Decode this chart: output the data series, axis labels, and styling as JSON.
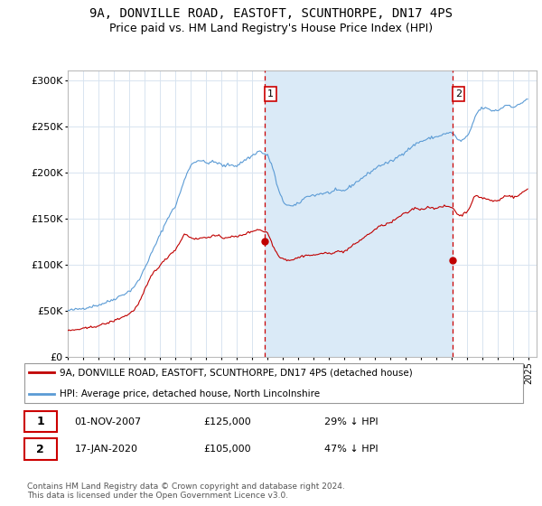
{
  "title": "9A, DONVILLE ROAD, EASTOFT, SCUNTHORPE, DN17 4PS",
  "subtitle": "Price paid vs. HM Land Registry's House Price Index (HPI)",
  "title_fontsize": 10,
  "subtitle_fontsize": 9,
  "ylabel_ticks": [
    "£0",
    "£50K",
    "£100K",
    "£150K",
    "£200K",
    "£250K",
    "£300K"
  ],
  "ytick_values": [
    0,
    50000,
    100000,
    150000,
    200000,
    250000,
    300000
  ],
  "ylim": [
    0,
    310000
  ],
  "xlim_start": 1995.0,
  "xlim_end": 2025.5,
  "background_color": "#ffffff",
  "grid_color": "#d8e4f0",
  "hpi_color": "#5b9bd5",
  "hpi_fill_color": "#daeaf7",
  "price_color": "#c00000",
  "vline_color": "#cc0000",
  "marker1_x": 2007.83,
  "marker1_y": 125000,
  "marker2_x": 2020.04,
  "marker2_y": 105000,
  "legend_label_price": "9A, DONVILLE ROAD, EASTOFT, SCUNTHORPE, DN17 4PS (detached house)",
  "legend_label_hpi": "HPI: Average price, detached house, North Lincolnshire",
  "table_rows": [
    {
      "num": "1",
      "date": "01-NOV-2007",
      "price": "£125,000",
      "hpi": "29% ↓ HPI"
    },
    {
      "num": "2",
      "date": "17-JAN-2020",
      "price": "£105,000",
      "hpi": "47% ↓ HPI"
    }
  ],
  "footnote": "Contains HM Land Registry data © Crown copyright and database right 2024.\nThis data is licensed under the Open Government Licence v3.0.",
  "hpi_data_years": [
    1995.0,
    1995.083,
    1995.167,
    1995.25,
    1995.333,
    1995.417,
    1995.5,
    1995.583,
    1995.667,
    1995.75,
    1995.833,
    1995.917,
    1996.0,
    1996.083,
    1996.167,
    1996.25,
    1996.333,
    1996.417,
    1996.5,
    1996.583,
    1996.667,
    1996.75,
    1996.833,
    1996.917,
    1997.0,
    1997.083,
    1997.167,
    1997.25,
    1997.333,
    1997.417,
    1997.5,
    1997.583,
    1997.667,
    1997.75,
    1997.833,
    1997.917,
    1998.0,
    1998.083,
    1998.167,
    1998.25,
    1998.333,
    1998.417,
    1998.5,
    1998.583,
    1998.667,
    1998.75,
    1998.833,
    1998.917,
    1999.0,
    1999.083,
    1999.167,
    1999.25,
    1999.333,
    1999.417,
    1999.5,
    1999.583,
    1999.667,
    1999.75,
    1999.833,
    1999.917,
    2000.0,
    2000.083,
    2000.167,
    2000.25,
    2000.333,
    2000.417,
    2000.5,
    2000.583,
    2000.667,
    2000.75,
    2000.833,
    2000.917,
    2001.0,
    2001.083,
    2001.167,
    2001.25,
    2001.333,
    2001.417,
    2001.5,
    2001.583,
    2001.667,
    2001.75,
    2001.833,
    2001.917,
    2002.0,
    2002.083,
    2002.167,
    2002.25,
    2002.333,
    2002.417,
    2002.5,
    2002.583,
    2002.667,
    2002.75,
    2002.833,
    2002.917,
    2003.0,
    2003.083,
    2003.167,
    2003.25,
    2003.333,
    2003.417,
    2003.5,
    2003.583,
    2003.667,
    2003.75,
    2003.833,
    2003.917,
    2004.0,
    2004.083,
    2004.167,
    2004.25,
    2004.333,
    2004.417,
    2004.5,
    2004.583,
    2004.667,
    2004.75,
    2004.833,
    2004.917,
    2005.0,
    2005.083,
    2005.167,
    2005.25,
    2005.333,
    2005.417,
    2005.5,
    2005.583,
    2005.667,
    2005.75,
    2005.833,
    2005.917,
    2006.0,
    2006.083,
    2006.167,
    2006.25,
    2006.333,
    2006.417,
    2006.5,
    2006.583,
    2006.667,
    2006.75,
    2006.833,
    2006.917,
    2007.0,
    2007.083,
    2007.167,
    2007.25,
    2007.333,
    2007.417,
    2007.5,
    2007.583,
    2007.667,
    2007.75,
    2007.833,
    2007.917,
    2008.0,
    2008.083,
    2008.167,
    2008.25,
    2008.333,
    2008.417,
    2008.5,
    2008.583,
    2008.667,
    2008.75,
    2008.833,
    2008.917,
    2009.0,
    2009.083,
    2009.167,
    2009.25,
    2009.333,
    2009.417,
    2009.5,
    2009.583,
    2009.667,
    2009.75,
    2009.833,
    2009.917,
    2010.0,
    2010.083,
    2010.167,
    2010.25,
    2010.333,
    2010.417,
    2010.5,
    2010.583,
    2010.667,
    2010.75,
    2010.833,
    2010.917,
    2011.0,
    2011.083,
    2011.167,
    2011.25,
    2011.333,
    2011.417,
    2011.5,
    2011.583,
    2011.667,
    2011.75,
    2011.833,
    2011.917,
    2012.0,
    2012.083,
    2012.167,
    2012.25,
    2012.333,
    2012.417,
    2012.5,
    2012.583,
    2012.667,
    2012.75,
    2012.833,
    2012.917,
    2013.0,
    2013.083,
    2013.167,
    2013.25,
    2013.333,
    2013.417,
    2013.5,
    2013.583,
    2013.667,
    2013.75,
    2013.833,
    2013.917,
    2014.0,
    2014.083,
    2014.167,
    2014.25,
    2014.333,
    2014.417,
    2014.5,
    2014.583,
    2014.667,
    2014.75,
    2014.833,
    2014.917,
    2015.0,
    2015.083,
    2015.167,
    2015.25,
    2015.333,
    2015.417,
    2015.5,
    2015.583,
    2015.667,
    2015.75,
    2015.833,
    2015.917,
    2016.0,
    2016.083,
    2016.167,
    2016.25,
    2016.333,
    2016.417,
    2016.5,
    2016.583,
    2016.667,
    2016.75,
    2016.833,
    2016.917,
    2017.0,
    2017.083,
    2017.167,
    2017.25,
    2017.333,
    2017.417,
    2017.5,
    2017.583,
    2017.667,
    2017.75,
    2017.833,
    2017.917,
    2018.0,
    2018.083,
    2018.167,
    2018.25,
    2018.333,
    2018.417,
    2018.5,
    2018.583,
    2018.667,
    2018.75,
    2018.833,
    2018.917,
    2019.0,
    2019.083,
    2019.167,
    2019.25,
    2019.333,
    2019.417,
    2019.5,
    2019.583,
    2019.667,
    2019.75,
    2019.833,
    2019.917,
    2020.0,
    2020.083,
    2020.167,
    2020.25,
    2020.333,
    2020.417,
    2020.5,
    2020.583,
    2020.667,
    2020.75,
    2020.833,
    2020.917,
    2021.0,
    2021.083,
    2021.167,
    2021.25,
    2021.333,
    2021.417,
    2021.5,
    2021.583,
    2021.667,
    2021.75,
    2021.833,
    2021.917,
    2022.0,
    2022.083,
    2022.167,
    2022.25,
    2022.333,
    2022.417,
    2022.5,
    2022.583,
    2022.667,
    2022.75,
    2022.833,
    2022.917,
    2023.0,
    2023.083,
    2023.167,
    2023.25,
    2023.333,
    2023.417,
    2023.5,
    2023.583,
    2023.667,
    2023.75,
    2023.833,
    2023.917,
    2024.0,
    2024.083,
    2024.167,
    2024.25,
    2024.333,
    2024.417,
    2024.5,
    2024.583,
    2024.667,
    2024.75,
    2024.833,
    2024.917
  ],
  "hpi_data_values": [
    50000,
    50200,
    50400,
    50600,
    50800,
    51000,
    51200,
    51400,
    51600,
    51800,
    52000,
    52200,
    52500,
    52800,
    53100,
    53400,
    53700,
    54000,
    54300,
    54600,
    54900,
    55200,
    55500,
    55800,
    56200,
    56600,
    57000,
    57500,
    58000,
    58500,
    59000,
    59500,
    60000,
    60600,
    61200,
    61800,
    62500,
    63200,
    63900,
    64600,
    65300,
    66000,
    66700,
    67400,
    68100,
    68800,
    69500,
    70200,
    71000,
    72000,
    73500,
    75000,
    76500,
    78000,
    80000,
    82000,
    84000,
    87000,
    90000,
    93000,
    96000,
    99000,
    102000,
    105000,
    108000,
    111000,
    114000,
    117000,
    120000,
    123000,
    126000,
    129000,
    132000,
    135000,
    138000,
    141000,
    144000,
    147000,
    150000,
    153000,
    155000,
    157000,
    159000,
    161000,
    163000,
    167000,
    171000,
    175000,
    179000,
    183000,
    187000,
    191000,
    195000,
    199000,
    202000,
    205000,
    207000,
    209000,
    210000,
    211000,
    212000,
    212500,
    213000,
    213000,
    212500,
    212000,
    211500,
    211000,
    210000,
    210000,
    210500,
    211000,
    211000,
    211000,
    211000,
    211000,
    210500,
    210000,
    209500,
    209000,
    208000,
    207000,
    207000,
    207000,
    207500,
    208000,
    208000,
    208000,
    208000,
    208000,
    207500,
    207000,
    207000,
    208000,
    209000,
    210000,
    211000,
    212000,
    213000,
    214000,
    215000,
    215500,
    216000,
    217000,
    218000,
    219000,
    220000,
    221000,
    222000,
    222500,
    223000,
    222000,
    221000,
    220000,
    219500,
    219000,
    218000,
    215000,
    212000,
    209000,
    205000,
    200000,
    194000,
    188000,
    183000,
    179000,
    175000,
    172000,
    169000,
    167000,
    166000,
    165000,
    164500,
    164000,
    163500,
    163000,
    163500,
    164000,
    164500,
    165000,
    166000,
    167000,
    168500,
    170000,
    171000,
    172000,
    173000,
    174000,
    174500,
    175000,
    175000,
    175000,
    175000,
    175000,
    175500,
    176000,
    176500,
    177000,
    177000,
    177000,
    177000,
    177000,
    177500,
    178000,
    178000,
    178000,
    178500,
    179000,
    179500,
    180000,
    180000,
    180000,
    180000,
    180000,
    180000,
    180000,
    180500,
    181000,
    182000,
    183000,
    184000,
    185000,
    186000,
    187000,
    188000,
    189000,
    190000,
    191000,
    192000,
    193000,
    194000,
    195000,
    196000,
    197000,
    198000,
    199000,
    200000,
    201000,
    202000,
    203000,
    204000,
    205000,
    206000,
    207000,
    207500,
    208000,
    208500,
    209000,
    209500,
    210000,
    210500,
    211000,
    211500,
    212000,
    213000,
    214000,
    215000,
    216000,
    217000,
    218000,
    219000,
    220000,
    221000,
    222000,
    223000,
    224000,
    225000,
    226000,
    227000,
    228000,
    229000,
    230000,
    231000,
    232000,
    232500,
    233000,
    233500,
    234000,
    234500,
    235000,
    235500,
    236000,
    236500,
    237000,
    237500,
    238000,
    238000,
    238000,
    238500,
    239000,
    239500,
    240000,
    240500,
    241000,
    241500,
    242000,
    242000,
    242000,
    242500,
    243000,
    243000,
    242000,
    240000,
    238000,
    236000,
    235000,
    234000,
    234000,
    235000,
    236000,
    237000,
    238000,
    239000,
    241000,
    244000,
    248000,
    252000,
    256000,
    260000,
    263000,
    265000,
    267000,
    268000,
    269000,
    269500,
    270000,
    269500,
    269000,
    268500,
    268000,
    267500,
    267000,
    267000,
    267000,
    267000,
    267000,
    267500,
    268000,
    269000,
    270000,
    271000,
    272000,
    272500,
    273000,
    273000,
    272500,
    272000,
    271500,
    271000,
    271000,
    271500,
    272000,
    273000,
    274000,
    275000,
    276000,
    277000,
    278000,
    279000,
    280000
  ],
  "price_data_years": [
    1995.0,
    1995.083,
    1995.167,
    1995.25,
    1995.333,
    1995.417,
    1995.5,
    1995.583,
    1995.667,
    1995.75,
    1995.833,
    1995.917,
    1996.0,
    1996.083,
    1996.167,
    1996.25,
    1996.333,
    1996.417,
    1996.5,
    1996.583,
    1996.667,
    1996.75,
    1996.833,
    1996.917,
    1997.0,
    1997.083,
    1997.167,
    1997.25,
    1997.333,
    1997.417,
    1997.5,
    1997.583,
    1997.667,
    1997.75,
    1997.833,
    1997.917,
    1998.0,
    1998.083,
    1998.167,
    1998.25,
    1998.333,
    1998.417,
    1998.5,
    1998.583,
    1998.667,
    1998.75,
    1998.833,
    1998.917,
    1999.0,
    1999.083,
    1999.167,
    1999.25,
    1999.333,
    1999.417,
    1999.5,
    1999.583,
    1999.667,
    1999.75,
    1999.833,
    1999.917,
    2000.0,
    2000.083,
    2000.167,
    2000.25,
    2000.333,
    2000.417,
    2000.5,
    2000.583,
    2000.667,
    2000.75,
    2000.833,
    2000.917,
    2001.0,
    2001.083,
    2001.167,
    2001.25,
    2001.333,
    2001.417,
    2001.5,
    2001.583,
    2001.667,
    2001.75,
    2001.833,
    2001.917,
    2002.0,
    2002.083,
    2002.167,
    2002.25,
    2002.333,
    2002.417,
    2002.5,
    2002.583,
    2002.667,
    2002.75,
    2002.833,
    2002.917,
    2003.0,
    2003.083,
    2003.167,
    2003.25,
    2003.333,
    2003.417,
    2003.5,
    2003.583,
    2003.667,
    2003.75,
    2003.833,
    2003.917,
    2004.0,
    2004.083,
    2004.167,
    2004.25,
    2004.333,
    2004.417,
    2004.5,
    2004.583,
    2004.667,
    2004.75,
    2004.833,
    2004.917,
    2005.0,
    2005.083,
    2005.167,
    2005.25,
    2005.333,
    2005.417,
    2005.5,
    2005.583,
    2005.667,
    2005.75,
    2005.833,
    2005.917,
    2006.0,
    2006.083,
    2006.167,
    2006.25,
    2006.333,
    2006.417,
    2006.5,
    2006.583,
    2006.667,
    2006.75,
    2006.833,
    2006.917,
    2007.0,
    2007.083,
    2007.167,
    2007.25,
    2007.333,
    2007.417,
    2007.5,
    2007.583,
    2007.667,
    2007.75,
    2007.833,
    2007.917,
    2008.0,
    2008.083,
    2008.167,
    2008.25,
    2008.333,
    2008.417,
    2008.5,
    2008.583,
    2008.667,
    2008.75,
    2008.833,
    2008.917,
    2009.0,
    2009.083,
    2009.167,
    2009.25,
    2009.333,
    2009.417,
    2009.5,
    2009.583,
    2009.667,
    2009.75,
    2009.833,
    2009.917,
    2010.0,
    2010.083,
    2010.167,
    2010.25,
    2010.333,
    2010.417,
    2010.5,
    2010.583,
    2010.667,
    2010.75,
    2010.833,
    2010.917,
    2011.0,
    2011.083,
    2011.167,
    2011.25,
    2011.333,
    2011.417,
    2011.5,
    2011.583,
    2011.667,
    2011.75,
    2011.833,
    2011.917,
    2012.0,
    2012.083,
    2012.167,
    2012.25,
    2012.333,
    2012.417,
    2012.5,
    2012.583,
    2012.667,
    2012.75,
    2012.833,
    2012.917,
    2013.0,
    2013.083,
    2013.167,
    2013.25,
    2013.333,
    2013.417,
    2013.5,
    2013.583,
    2013.667,
    2013.75,
    2013.833,
    2013.917,
    2014.0,
    2014.083,
    2014.167,
    2014.25,
    2014.333,
    2014.417,
    2014.5,
    2014.583,
    2014.667,
    2014.75,
    2014.833,
    2014.917,
    2015.0,
    2015.083,
    2015.167,
    2015.25,
    2015.333,
    2015.417,
    2015.5,
    2015.583,
    2015.667,
    2015.75,
    2015.833,
    2015.917,
    2016.0,
    2016.083,
    2016.167,
    2016.25,
    2016.333,
    2016.417,
    2016.5,
    2016.583,
    2016.667,
    2016.75,
    2016.833,
    2016.917,
    2017.0,
    2017.083,
    2017.167,
    2017.25,
    2017.333,
    2017.417,
    2017.5,
    2017.583,
    2017.667,
    2017.75,
    2017.833,
    2017.917,
    2018.0,
    2018.083,
    2018.167,
    2018.25,
    2018.333,
    2018.417,
    2018.5,
    2018.583,
    2018.667,
    2018.75,
    2018.833,
    2018.917,
    2019.0,
    2019.083,
    2019.167,
    2019.25,
    2019.333,
    2019.417,
    2019.5,
    2019.583,
    2019.667,
    2019.75,
    2019.833,
    2019.917,
    2020.0,
    2020.083,
    2020.167,
    2020.25,
    2020.333,
    2020.417,
    2020.5,
    2020.583,
    2020.667,
    2020.75,
    2020.833,
    2020.917,
    2021.0,
    2021.083,
    2021.167,
    2021.25,
    2021.333,
    2021.417,
    2021.5,
    2021.583,
    2021.667,
    2021.75,
    2021.833,
    2021.917,
    2022.0,
    2022.083,
    2022.167,
    2022.25,
    2022.333,
    2022.417,
    2022.5,
    2022.583,
    2022.667,
    2022.75,
    2022.833,
    2022.917,
    2023.0,
    2023.083,
    2023.167,
    2023.25,
    2023.333,
    2023.417,
    2023.5,
    2023.583,
    2023.667,
    2023.75,
    2023.833,
    2023.917,
    2024.0,
    2024.083,
    2024.167,
    2024.25,
    2024.333,
    2024.417,
    2024.5,
    2024.583,
    2024.667,
    2024.75,
    2024.833,
    2024.917
  ],
  "price_data_values": [
    28000,
    28200,
    28400,
    28600,
    28800,
    29000,
    29200,
    29400,
    29600,
    29800,
    30000,
    30200,
    30400,
    30600,
    30800,
    31000,
    31300,
    31600,
    31900,
    32200,
    32500,
    32800,
    33100,
    33400,
    33700,
    34100,
    34500,
    34900,
    35300,
    35700,
    36100,
    36500,
    36900,
    37400,
    37900,
    38400,
    39000,
    39600,
    40200,
    40800,
    41400,
    42000,
    42600,
    43200,
    43800,
    44400,
    45000,
    45700,
    46500,
    47500,
    48800,
    50000,
    51500,
    53000,
    55000,
    57000,
    59500,
    62500,
    65500,
    68500,
    72000,
    75000,
    78000,
    81000,
    84000,
    87000,
    89500,
    91500,
    93000,
    94500,
    96000,
    97500,
    99000,
    100500,
    102000,
    103500,
    105000,
    106500,
    108000,
    109500,
    111000,
    112500,
    114000,
    115000,
    116000,
    118000,
    120500,
    123000,
    125500,
    128000,
    130500,
    132500,
    133000,
    132000,
    131000,
    130000,
    129500,
    129000,
    128500,
    128000,
    127500,
    127500,
    128000,
    128500,
    129000,
    129000,
    129000,
    129000,
    129000,
    129500,
    130000,
    130500,
    131000,
    131000,
    131000,
    131000,
    131000,
    131000,
    130500,
    130000,
    129500,
    129000,
    129000,
    129000,
    129500,
    130000,
    130000,
    130000,
    130000,
    130000,
    130000,
    130000,
    130000,
    130500,
    131000,
    131500,
    132000,
    132500,
    133000,
    133500,
    134000,
    134500,
    135000,
    135500,
    136000,
    136500,
    137000,
    137500,
    138000,
    138000,
    137500,
    137000,
    136500,
    136000,
    135500,
    135000,
    134000,
    131500,
    128000,
    124500,
    121000,
    118000,
    115500,
    113000,
    111000,
    109500,
    108000,
    107000,
    106500,
    106000,
    105500,
    105000,
    105000,
    105000,
    105000,
    105000,
    105500,
    106000,
    106500,
    107000,
    107500,
    108000,
    108500,
    109000,
    109500,
    110000,
    110000,
    110000,
    110000,
    110000,
    110000,
    110000,
    110000,
    110000,
    110500,
    111000,
    111500,
    112000,
    112000,
    112000,
    112000,
    112000,
    112000,
    112000,
    112000,
    112000,
    112500,
    113000,
    113500,
    114000,
    114000,
    114000,
    114000,
    114000,
    114000,
    114000,
    114500,
    115000,
    116000,
    117000,
    118000,
    119000,
    120000,
    121000,
    122000,
    123000,
    124000,
    125000,
    126000,
    127000,
    128000,
    129000,
    130000,
    131000,
    132000,
    133000,
    134000,
    135000,
    136000,
    137000,
    138000,
    139000,
    140000,
    141000,
    141500,
    142000,
    142500,
    143000,
    143500,
    144000,
    144500,
    145000,
    145500,
    146000,
    147000,
    148000,
    149000,
    150000,
    151000,
    152000,
    153000,
    154000,
    154500,
    155000,
    155500,
    156000,
    157000,
    158000,
    159000,
    160000,
    160500,
    161000,
    161000,
    161000,
    160500,
    160000,
    160000,
    160000,
    160500,
    161000,
    161500,
    162000,
    162000,
    162000,
    162000,
    162000,
    161500,
    161000,
    161000,
    161000,
    161500,
    162000,
    162500,
    163000,
    163000,
    163000,
    163000,
    163000,
    162500,
    162000,
    162000,
    161000,
    159000,
    157000,
    155000,
    154000,
    153000,
    153000,
    154000,
    155000,
    156000,
    157000,
    158000,
    160000,
    163000,
    166000,
    169500,
    172000,
    173500,
    174000,
    174000,
    173500,
    173000,
    172500,
    172000,
    172000,
    171500,
    171000,
    170500,
    170000,
    169500,
    169000,
    169000,
    169000,
    169000,
    169000,
    169500,
    170000,
    171000,
    172000,
    173000,
    174000,
    174500,
    175000,
    175000,
    174500,
    174000,
    173500,
    173000,
    173000,
    173500,
    174000,
    175000,
    176000,
    177000,
    178000,
    179000,
    180000,
    181000,
    182000
  ]
}
